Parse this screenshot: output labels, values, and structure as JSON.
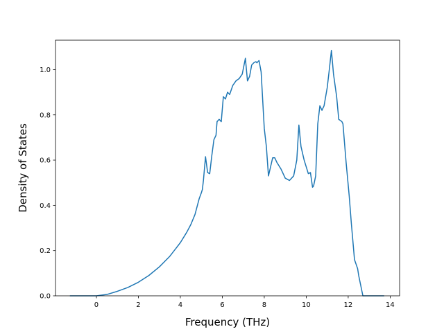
{
  "chart_data": {
    "type": "line",
    "title": "",
    "xlabel": "Frequency (THz)",
    "ylabel": "Density of States",
    "xlim": [
      -1.95,
      14.45
    ],
    "ylim": [
      0,
      1.13
    ],
    "xticks": [
      0,
      2,
      4,
      6,
      8,
      10,
      12,
      14
    ],
    "yticks": [
      0.0,
      0.2,
      0.4,
      0.6,
      0.8,
      1.0
    ],
    "ytick_labels": [
      "0.0",
      "0.2",
      "0.4",
      "0.6",
      "0.8",
      "1.0"
    ],
    "grid": false,
    "legend": "none",
    "series": [
      {
        "color": "#1f77b4",
        "x": [
          -1.25,
          -0.5,
          0.0,
          0.5,
          1.0,
          1.5,
          2.0,
          2.5,
          3.0,
          3.5,
          4.0,
          4.3,
          4.5,
          4.7,
          4.9,
          5.0,
          5.05,
          5.1,
          5.2,
          5.3,
          5.4,
          5.5,
          5.6,
          5.7,
          5.75,
          5.85,
          5.95,
          6.05,
          6.15,
          6.25,
          6.35,
          6.5,
          6.65,
          6.8,
          6.95,
          7.1,
          7.2,
          7.3,
          7.4,
          7.5,
          7.6,
          7.65,
          7.75,
          7.85,
          8.0,
          8.1,
          8.2,
          8.3,
          8.4,
          8.5,
          8.6,
          8.8,
          9.0,
          9.2,
          9.4,
          9.55,
          9.65,
          9.75,
          9.9,
          10.1,
          10.2,
          10.3,
          10.35,
          10.45,
          10.55,
          10.65,
          10.75,
          10.85,
          11.0,
          11.1,
          11.2,
          11.3,
          11.45,
          11.55,
          11.7,
          11.75,
          11.9,
          12.05,
          12.15,
          12.3,
          12.45,
          12.5,
          12.7,
          13.0,
          13.4,
          13.7
        ],
        "y": [
          0.0,
          0.0,
          0.0,
          0.006,
          0.02,
          0.037,
          0.06,
          0.09,
          0.128,
          0.175,
          0.235,
          0.28,
          0.315,
          0.36,
          0.43,
          0.455,
          0.47,
          0.51,
          0.615,
          0.545,
          0.54,
          0.62,
          0.69,
          0.71,
          0.77,
          0.78,
          0.77,
          0.88,
          0.87,
          0.9,
          0.89,
          0.93,
          0.95,
          0.96,
          0.98,
          1.05,
          0.95,
          0.97,
          1.02,
          1.03,
          1.035,
          1.03,
          1.04,
          0.99,
          0.74,
          0.66,
          0.53,
          0.57,
          0.61,
          0.61,
          0.59,
          0.56,
          0.52,
          0.51,
          0.53,
          0.6,
          0.755,
          0.66,
          0.6,
          0.54,
          0.545,
          0.48,
          0.485,
          0.53,
          0.76,
          0.84,
          0.82,
          0.84,
          0.92,
          1.0,
          1.085,
          0.98,
          0.88,
          0.78,
          0.77,
          0.76,
          0.59,
          0.44,
          0.32,
          0.16,
          0.12,
          0.09,
          0.0,
          0.0,
          0.0,
          0.0
        ]
      }
    ]
  }
}
